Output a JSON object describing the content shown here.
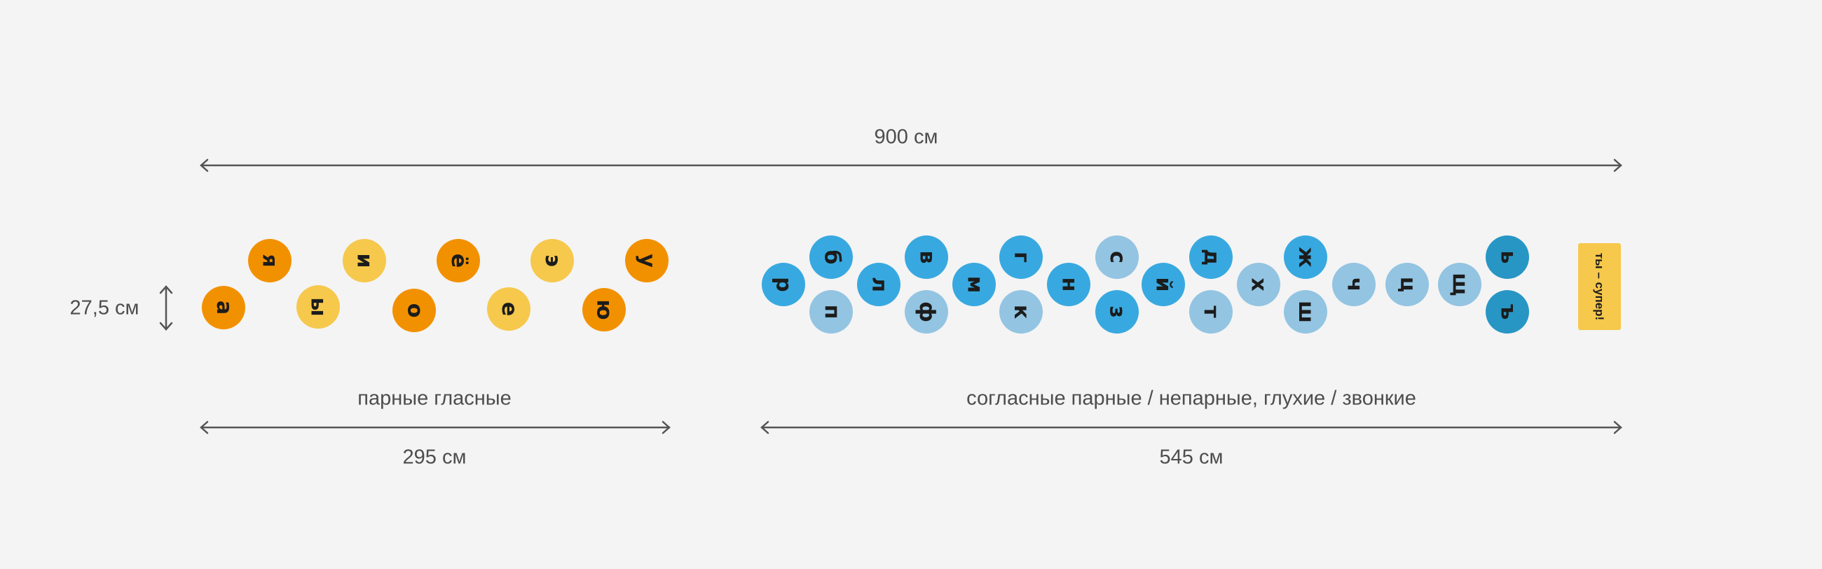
{
  "dimensions": {
    "total": "900 см",
    "height": "27,5 см",
    "vowels": "295 см",
    "consonants": "545 см"
  },
  "captions": {
    "vowels": "парные гласные",
    "consonants": "согласные парные / непарные, глухие / звонкие"
  },
  "vowels": [
    "я",
    "а",
    "ы",
    "и",
    "о",
    "ё",
    "е",
    "э",
    "ю",
    "у"
  ],
  "consonants": [
    "р",
    "б",
    "п",
    "л",
    "в",
    "ф",
    "м",
    "г",
    "к",
    "н",
    "с",
    "з",
    "й",
    "д",
    "т",
    "х",
    "ж",
    "ш",
    "ч",
    "ц",
    "щ",
    "ь",
    "ъ"
  ],
  "badge": "ты – супер!",
  "colors": {
    "vowel_dark": "#f29100",
    "vowel_light": "#f6c84c",
    "cons_voiced": "#38a9e0",
    "cons_voiceless": "#93c4e2",
    "signs": "#2796c4"
  }
}
